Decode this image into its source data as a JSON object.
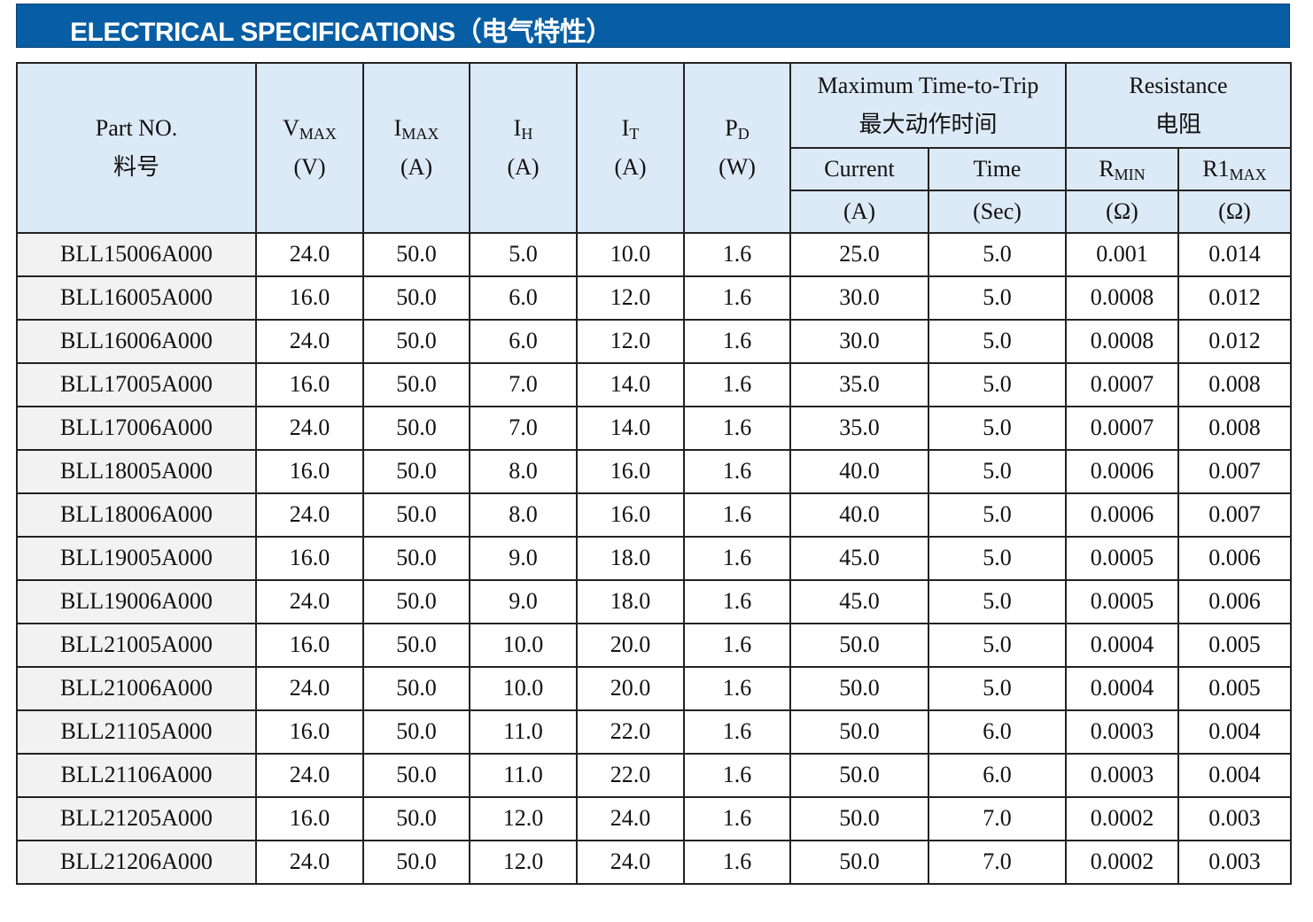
{
  "header": {
    "title": "ELECTRICAL SPECIFICATIONS（电气特性）"
  },
  "table": {
    "columns": [
      {
        "label": "Part NO.",
        "label_cn": "料号"
      },
      {
        "symbol": "V",
        "sub": "MAX",
        "unit": "(V)"
      },
      {
        "symbol": "I",
        "sub": "MAX",
        "unit": "(A)"
      },
      {
        "symbol": "I",
        "sub": "H",
        "unit": "(A)"
      },
      {
        "symbol": "I",
        "sub": "T",
        "unit": "(A)"
      },
      {
        "symbol": "P",
        "sub": "D",
        "unit": "(W)"
      }
    ],
    "groups": [
      {
        "label": "Maximum Time-to-Trip",
        "label_cn": "最大动作时间",
        "columns": [
          {
            "label": "Current",
            "unit": "(A)"
          },
          {
            "label": "Time",
            "unit": "(Sec)"
          }
        ]
      },
      {
        "label": "Resistance",
        "label_cn": "电阻",
        "columns": [
          {
            "symbol": "R",
            "sub": "MIN",
            "unit": "(Ω)"
          },
          {
            "symbol": "R1",
            "sub": "MAX",
            "unit": "(Ω)"
          }
        ]
      }
    ],
    "rows": [
      [
        "BLL15006A000",
        "24.0",
        "50.0",
        "5.0",
        "10.0",
        "1.6",
        "25.0",
        "5.0",
        "0.001",
        "0.014"
      ],
      [
        "BLL16005A000",
        "16.0",
        "50.0",
        "6.0",
        "12.0",
        "1.6",
        "30.0",
        "5.0",
        "0.0008",
        "0.012"
      ],
      [
        "BLL16006A000",
        "24.0",
        "50.0",
        "6.0",
        "12.0",
        "1.6",
        "30.0",
        "5.0",
        "0.0008",
        "0.012"
      ],
      [
        "BLL17005A000",
        "16.0",
        "50.0",
        "7.0",
        "14.0",
        "1.6",
        "35.0",
        "5.0",
        "0.0007",
        "0.008"
      ],
      [
        "BLL17006A000",
        "24.0",
        "50.0",
        "7.0",
        "14.0",
        "1.6",
        "35.0",
        "5.0",
        "0.0007",
        "0.008"
      ],
      [
        "BLL18005A000",
        "16.0",
        "50.0",
        "8.0",
        "16.0",
        "1.6",
        "40.0",
        "5.0",
        "0.0006",
        "0.007"
      ],
      [
        "BLL18006A000",
        "24.0",
        "50.0",
        "8.0",
        "16.0",
        "1.6",
        "40.0",
        "5.0",
        "0.0006",
        "0.007"
      ],
      [
        "BLL19005A000",
        "16.0",
        "50.0",
        "9.0",
        "18.0",
        "1.6",
        "45.0",
        "5.0",
        "0.0005",
        "0.006"
      ],
      [
        "BLL19006A000",
        "24.0",
        "50.0",
        "9.0",
        "18.0",
        "1.6",
        "45.0",
        "5.0",
        "0.0005",
        "0.006"
      ],
      [
        "BLL21005A000",
        "16.0",
        "50.0",
        "10.0",
        "20.0",
        "1.6",
        "50.0",
        "5.0",
        "0.0004",
        "0.005"
      ],
      [
        "BLL21006A000",
        "24.0",
        "50.0",
        "10.0",
        "20.0",
        "1.6",
        "50.0",
        "5.0",
        "0.0004",
        "0.005"
      ],
      [
        "BLL21105A000",
        "16.0",
        "50.0",
        "11.0",
        "22.0",
        "1.6",
        "50.0",
        "6.0",
        "0.0003",
        "0.004"
      ],
      [
        "BLL21106A000",
        "24.0",
        "50.0",
        "11.0",
        "22.0",
        "1.6",
        "50.0",
        "6.0",
        "0.0003",
        "0.004"
      ],
      [
        "BLL21205A000",
        "16.0",
        "50.0",
        "12.0",
        "24.0",
        "1.6",
        "50.0",
        "7.0",
        "0.0002",
        "0.003"
      ],
      [
        "BLL21206A000",
        "24.0",
        "50.0",
        "12.0",
        "24.0",
        "1.6",
        "50.0",
        "7.0",
        "0.0002",
        "0.003"
      ]
    ]
  }
}
